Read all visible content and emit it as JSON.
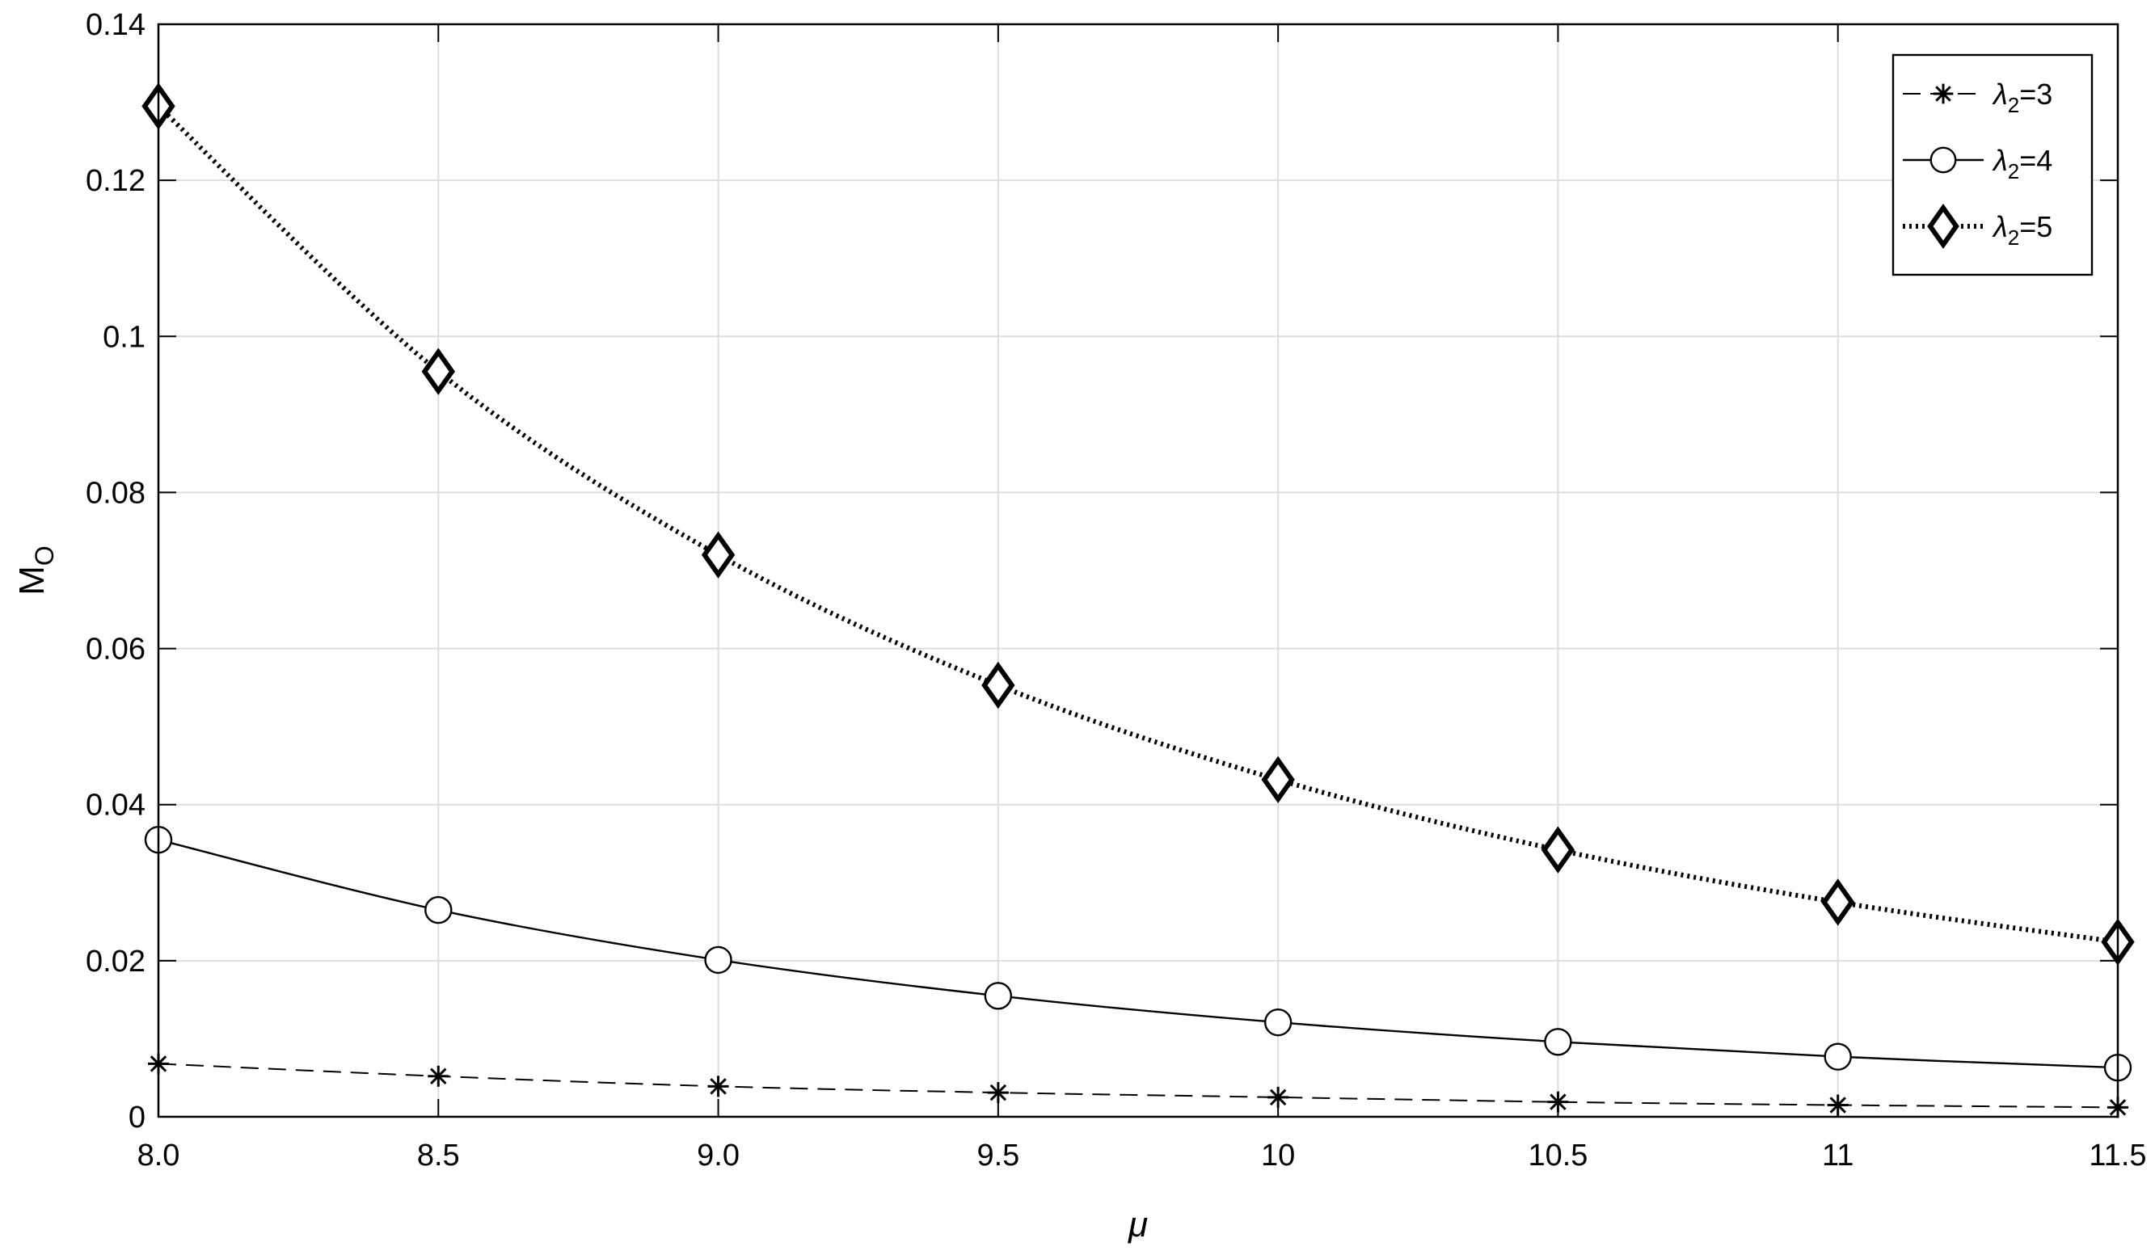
{
  "chart_data": {
    "type": "line",
    "xlabel": "μ",
    "ylabel": "M",
    "ylabel_subscript": "O",
    "x": [
      8.0,
      8.5,
      9.0,
      9.5,
      10,
      10.5,
      11,
      11.5
    ],
    "xlim": [
      8.0,
      11.5
    ],
    "ylim": [
      0,
      0.14
    ],
    "x_ticks": [
      {
        "value": 8.0,
        "label": "8.0"
      },
      {
        "value": 8.5,
        "label": "8.5"
      },
      {
        "value": 9.0,
        "label": "9.0"
      },
      {
        "value": 9.5,
        "label": "9.5"
      },
      {
        "value": 10,
        "label": "10"
      },
      {
        "value": 10.5,
        "label": "10.5"
      },
      {
        "value": 11,
        "label": "11"
      },
      {
        "value": 11.5,
        "label": "11.5"
      }
    ],
    "y_ticks": [
      {
        "value": 0,
        "label": "0"
      },
      {
        "value": 0.02,
        "label": "0.02"
      },
      {
        "value": 0.04,
        "label": "0.04"
      },
      {
        "value": 0.06,
        "label": "0.06"
      },
      {
        "value": 0.08,
        "label": "0.08"
      },
      {
        "value": 0.1,
        "label": "0.1"
      },
      {
        "value": 0.12,
        "label": "0.12"
      },
      {
        "value": 0.14,
        "label": "0.14"
      }
    ],
    "grid": true,
    "legend_position": "top-right",
    "series": [
      {
        "name_symbol": "λ",
        "name_subscript": "2",
        "name_suffix": "=3",
        "line_style": "dashed",
        "marker": "asterisk",
        "values": [
          0.0068,
          0.0052,
          0.0039,
          0.0031,
          0.0025,
          0.0019,
          0.0015,
          0.0012
        ]
      },
      {
        "name_symbol": "λ",
        "name_subscript": "2",
        "name_suffix": "=4",
        "line_style": "solid",
        "marker": "circle",
        "values": [
          0.0355,
          0.0265,
          0.0201,
          0.0155,
          0.0121,
          0.0096,
          0.0077,
          0.0063
        ]
      },
      {
        "name_symbol": "λ",
        "name_subscript": "2",
        "name_suffix": "=5",
        "line_style": "dotted",
        "marker": "diamond",
        "values": [
          0.1295,
          0.0955,
          0.072,
          0.0553,
          0.0432,
          0.0342,
          0.0275,
          0.0224
        ]
      }
    ]
  },
  "colors": {
    "line": "#000000",
    "grid": "#dddddd",
    "background": "#ffffff"
  }
}
